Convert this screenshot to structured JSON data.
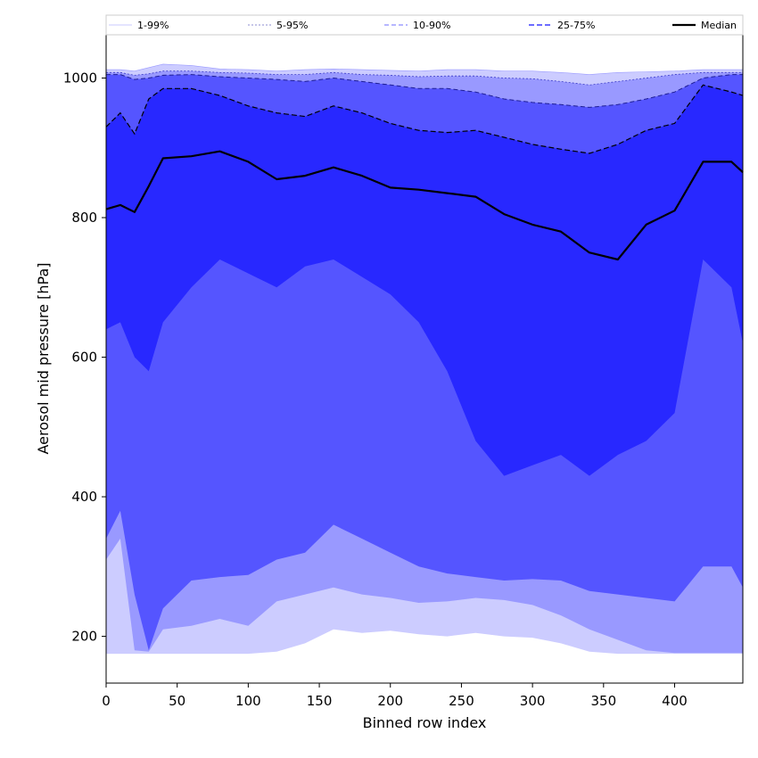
{
  "chart_data": {
    "type": "area",
    "title": "",
    "xlabel": "Binned row index",
    "ylabel": "Aerosol mid pressure [hPa]",
    "xlim": [
      0,
      448
    ],
    "ylim": [
      133,
      1062
    ],
    "x_ticks": [
      0,
      50,
      100,
      150,
      200,
      250,
      300,
      350,
      400
    ],
    "y_ticks": [
      200,
      400,
      600,
      800,
      1000
    ],
    "legend": {
      "placement": "top",
      "entries": [
        "1-99%",
        "5-95%",
        "10-90%",
        "25-75%",
        "Median"
      ]
    },
    "colors": {
      "band_1_99": "#ccccff",
      "band_5_95": "#9999ff",
      "band_10_90": "#5555ff",
      "band_25_75": "#2828ff",
      "median": "#000000"
    },
    "x": [
      0,
      10,
      20,
      30,
      40,
      60,
      80,
      100,
      120,
      140,
      160,
      180,
      200,
      220,
      240,
      260,
      280,
      300,
      320,
      340,
      360,
      380,
      400,
      420,
      440,
      448
    ],
    "series": [
      {
        "name": "1-99%",
        "lower": [
          175,
          175,
          175,
          175,
          175,
          175,
          175,
          175,
          178,
          190,
          210,
          205,
          208,
          203,
          200,
          205,
          200,
          198,
          190,
          178,
          175,
          175,
          175,
          175,
          175,
          175
        ],
        "upper": [
          1012,
          1012,
          1010,
          1015,
          1020,
          1018,
          1013,
          1012,
          1010,
          1012,
          1013,
          1012,
          1011,
          1010,
          1012,
          1012,
          1010,
          1010,
          1008,
          1005,
          1008,
          1009,
          1010,
          1012,
          1012,
          1012
        ]
      },
      {
        "name": "5-95%",
        "lower": [
          310,
          340,
          180,
          178,
          210,
          215,
          225,
          215,
          250,
          260,
          270,
          260,
          255,
          248,
          250,
          255,
          252,
          245,
          230,
          210,
          195,
          180,
          176,
          176,
          176,
          176
        ],
        "upper": [
          1008,
          1008,
          1004,
          1006,
          1010,
          1010,
          1008,
          1007,
          1005,
          1005,
          1008,
          1005,
          1004,
          1002,
          1003,
          1003,
          1000,
          999,
          995,
          990,
          995,
          1000,
          1005,
          1008,
          1008,
          1008
        ]
      },
      {
        "name": "10-90%",
        "lower": [
          340,
          380,
          260,
          180,
          240,
          280,
          285,
          288,
          310,
          320,
          360,
          340,
          320,
          300,
          290,
          285,
          280,
          282,
          280,
          265,
          260,
          255,
          250,
          300,
          300,
          270
        ],
        "upper": [
          1005,
          1005,
          998,
          1000,
          1004,
          1005,
          1002,
          1000,
          998,
          995,
          1000,
          995,
          990,
          985,
          985,
          980,
          970,
          965,
          962,
          958,
          962,
          970,
          980,
          1000,
          1005,
          1005
        ]
      },
      {
        "name": "25-75%",
        "lower": [
          640,
          650,
          600,
          580,
          650,
          700,
          740,
          720,
          700,
          730,
          740,
          715,
          690,
          650,
          580,
          480,
          430,
          445,
          460,
          430,
          460,
          480,
          520,
          740,
          700,
          620
        ],
        "upper": [
          930,
          950,
          920,
          970,
          985,
          985,
          975,
          960,
          950,
          945,
          960,
          950,
          935,
          925,
          922,
          925,
          915,
          905,
          898,
          892,
          905,
          925,
          935,
          990,
          980,
          975
        ]
      },
      {
        "name": "Median",
        "values": [
          812,
          818,
          808,
          845,
          885,
          888,
          895,
          880,
          855,
          860,
          872,
          860,
          843,
          840,
          835,
          830,
          805,
          790,
          780,
          750,
          740,
          790,
          810,
          880,
          880,
          865
        ]
      }
    ]
  }
}
